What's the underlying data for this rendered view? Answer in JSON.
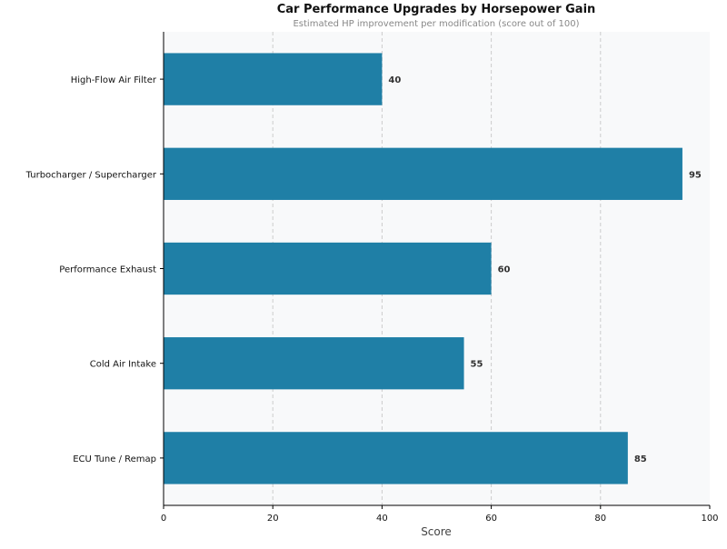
{
  "chart_data": {
    "type": "bar",
    "orientation": "horizontal",
    "title": "Car Performance Upgrades by Horsepower Gain",
    "subtitle": "Estimated HP improvement per modification (score out of 100)",
    "xlabel": "Score",
    "ylabel": "",
    "xlim": [
      0,
      100
    ],
    "xticks": [
      0,
      20,
      40,
      60,
      80,
      100
    ],
    "grid": "vertical dashed",
    "categories": [
      "High-Flow Air Filter",
      "Turbocharger / Supercharger",
      "Performance Exhaust",
      "Cold Air Intake",
      "ECU Tune / Remap"
    ],
    "values": [
      40,
      95,
      60,
      55,
      85
    ],
    "bar_color": "#1f7fa6",
    "background_color": "#f8f9fa"
  }
}
